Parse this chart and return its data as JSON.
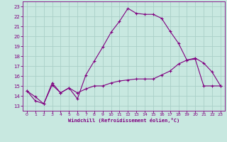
{
  "line1_x": [
    0,
    1,
    2,
    3,
    4,
    5,
    6,
    7,
    8,
    9,
    10,
    11,
    12,
    13,
    14,
    15,
    16,
    17,
    18,
    19,
    20,
    21,
    22,
    23
  ],
  "line1_y": [
    14.5,
    13.9,
    13.2,
    15.3,
    14.3,
    14.8,
    13.7,
    16.1,
    17.5,
    18.9,
    20.4,
    21.5,
    22.8,
    22.3,
    22.2,
    22.2,
    21.8,
    20.5,
    19.3,
    17.6,
    17.8,
    17.3,
    16.4,
    15.0
  ],
  "line2_x": [
    0,
    1,
    2,
    3,
    4,
    5,
    6,
    7,
    8,
    9,
    10,
    11,
    12,
    13,
    14,
    15,
    16,
    17,
    18,
    19,
    20,
    21,
    22,
    23
  ],
  "line2_y": [
    14.5,
    13.5,
    13.2,
    15.1,
    14.3,
    14.8,
    14.3,
    14.7,
    15.0,
    15.0,
    15.3,
    15.5,
    15.6,
    15.7,
    15.7,
    15.7,
    16.1,
    16.5,
    17.2,
    17.6,
    17.7,
    15.0,
    15.0,
    15.0
  ],
  "line_color": "#800080",
  "bg_color": "#c8e8e0",
  "grid_color": "#aacfc8",
  "xlabel": "Windchill (Refroidissement éolien,°C)",
  "xlabel_color": "#800080",
  "tick_color": "#800080",
  "ylim": [
    12.5,
    23.5
  ],
  "xlim": [
    -0.5,
    23.5
  ],
  "yticks": [
    13,
    14,
    15,
    16,
    17,
    18,
    19,
    20,
    21,
    22,
    23
  ],
  "xticks": [
    0,
    1,
    2,
    3,
    4,
    5,
    6,
    7,
    8,
    9,
    10,
    11,
    12,
    13,
    14,
    15,
    16,
    17,
    18,
    19,
    20,
    21,
    22,
    23
  ]
}
